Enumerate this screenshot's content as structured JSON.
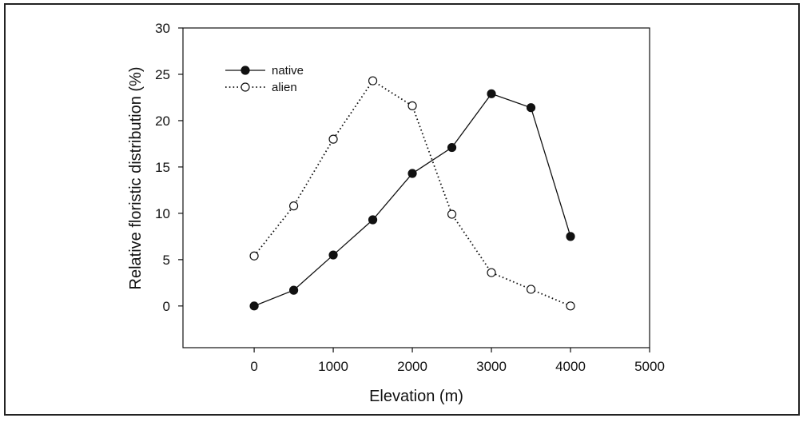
{
  "chart_data": {
    "type": "line",
    "xlabel": "Elevation (m)",
    "ylabel": "Relative floristic distribution (%)",
    "xlim": [
      -900,
      5000
    ],
    "ylim": [
      -4.5,
      30
    ],
    "xticks": [
      0,
      1000,
      2000,
      3000,
      4000,
      5000
    ],
    "yticks": [
      0,
      5,
      10,
      15,
      20,
      25,
      30
    ],
    "grid": false,
    "legend_position": "top-left",
    "series": [
      {
        "name": "native",
        "marker": "filled-circle",
        "line_style": "solid",
        "color": "#111111",
        "x": [
          0,
          500,
          1000,
          1500,
          2000,
          2500,
          3000,
          3500,
          4000
        ],
        "y": [
          0,
          1.7,
          5.5,
          9.3,
          14.3,
          17.1,
          22.9,
          21.4,
          7.5
        ]
      },
      {
        "name": "alien",
        "marker": "open-circle",
        "line_style": "dotted",
        "color": "#111111",
        "x": [
          0,
          500,
          1000,
          1500,
          2000,
          2500,
          3000,
          3500,
          4000
        ],
        "y": [
          5.4,
          10.8,
          18.0,
          24.3,
          21.6,
          9.9,
          3.6,
          1.8,
          0
        ]
      }
    ]
  }
}
